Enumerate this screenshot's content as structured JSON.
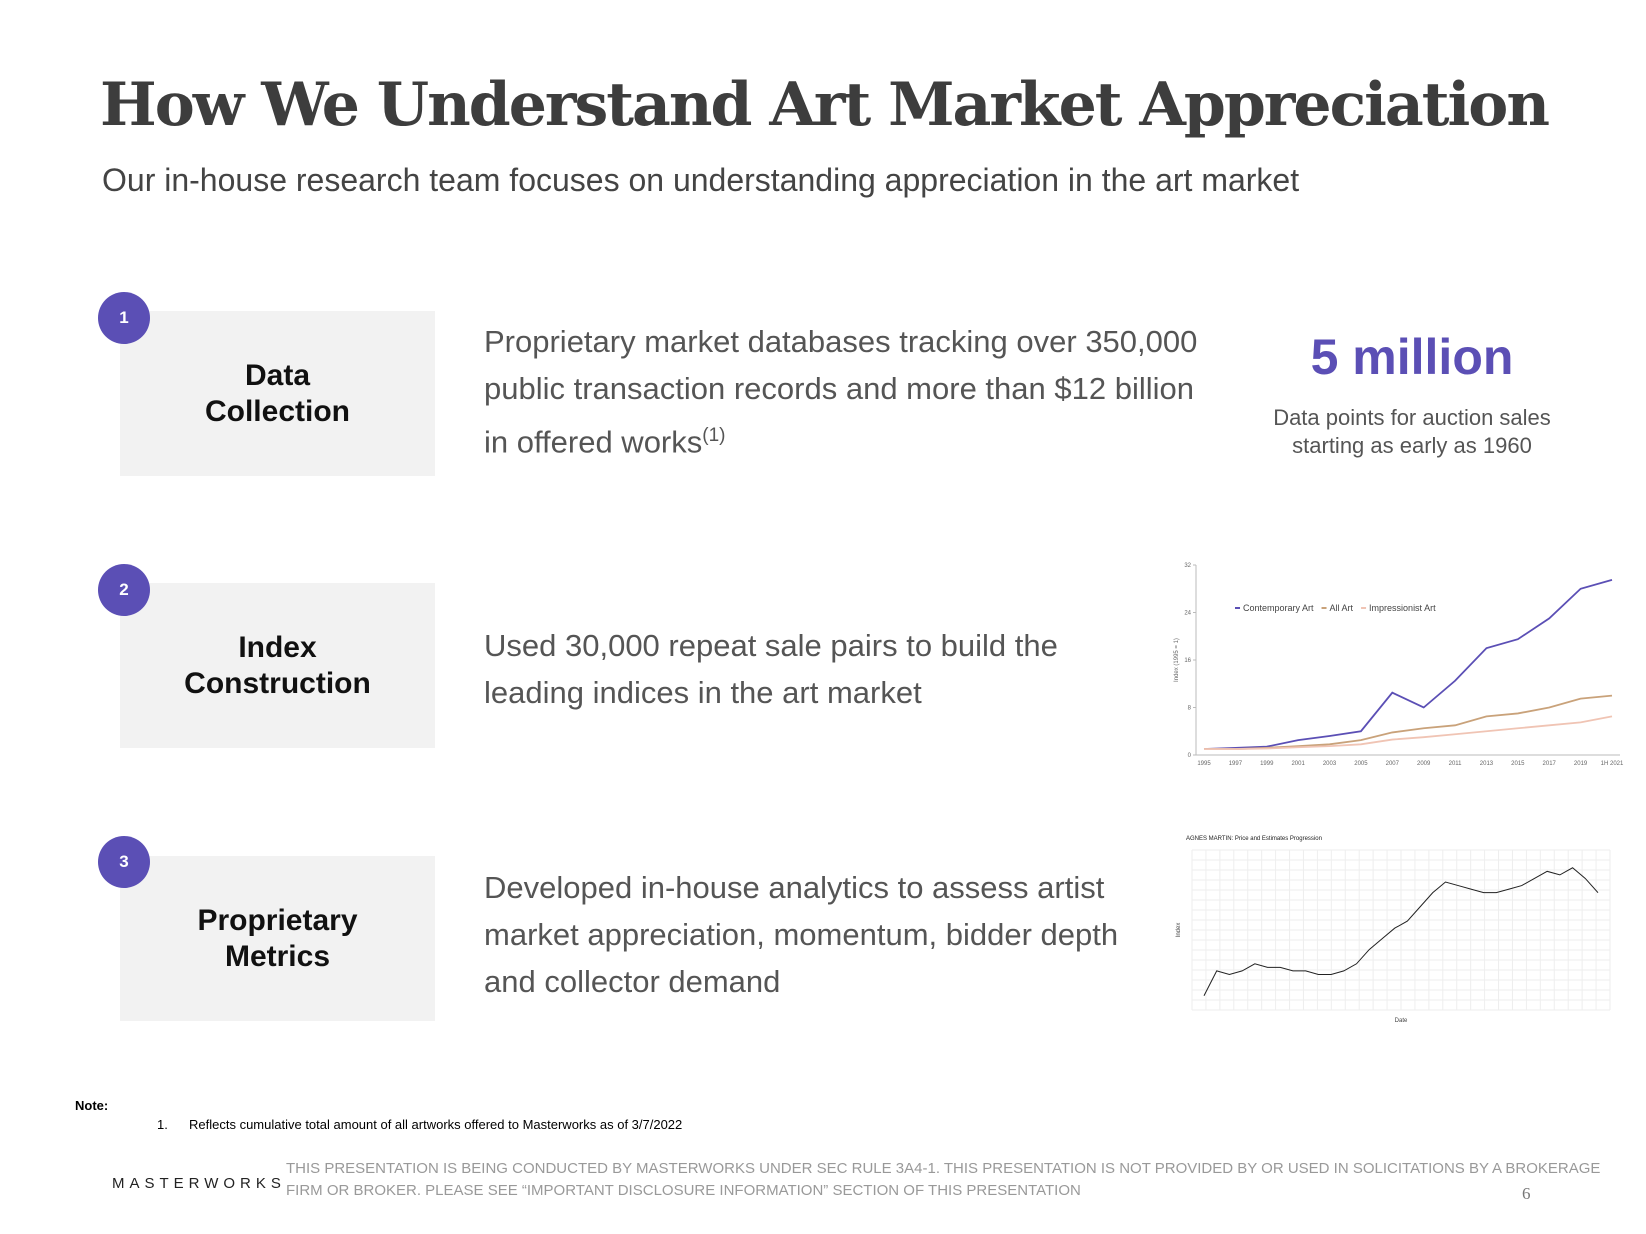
{
  "header": {
    "title": "How We Understand Art Market Appreciation",
    "subtitle": "Our in-house research team focuses on understanding appreciation in the art market"
  },
  "rows": [
    {
      "number": "1",
      "label": "Data Collection",
      "text": "Proprietary market databases tracking over 350,000 public transaction records and more than $12 billion in offered works",
      "sup": "(1)"
    },
    {
      "number": "2",
      "label": "Index Construction",
      "text": "Used 30,000 repeat sale pairs to build the leading indices in the art market"
    },
    {
      "number": "3",
      "label": "Proprietary Metrics",
      "text": "Developed in-house analytics to assess artist market appreciation, momentum, bidder depth and collector demand"
    }
  ],
  "stat": {
    "value": "5 million",
    "caption": "Data points for auction sales starting as early as 1960"
  },
  "chart_data": [
    {
      "type": "line",
      "y_label": "Index (1995 = 1)",
      "categories": [
        "1995",
        "1997",
        "1999",
        "2001",
        "2003",
        "2005",
        "2007",
        "2009",
        "2011",
        "2013",
        "2015",
        "2017",
        "2019",
        "1H 2021"
      ],
      "series": [
        {
          "name": "Contemporary Art",
          "color": "#5b4fb5",
          "values": [
            1,
            1.2,
            1.4,
            2.5,
            3.2,
            4,
            10.5,
            8,
            12.5,
            18,
            19.5,
            23,
            28,
            29.5
          ]
        },
        {
          "name": "All Art",
          "color": "#c9a27a",
          "values": [
            1,
            1,
            1.2,
            1.5,
            1.8,
            2.5,
            3.8,
            4.5,
            5,
            6.5,
            7,
            8,
            9.5,
            10
          ]
        },
        {
          "name": "Impressionist Art",
          "color": "#f0c4b4",
          "values": [
            1,
            1,
            1.1,
            1.3,
            1.5,
            1.8,
            2.6,
            3,
            3.5,
            4,
            4.5,
            5,
            5.5,
            6.5
          ]
        }
      ],
      "ylim": [
        0,
        32
      ],
      "yticks": [
        0,
        8,
        16,
        24,
        32
      ]
    },
    {
      "type": "line",
      "title": "AGNES MARTIN: Price and Estimates Progression",
      "y_label": "Index",
      "x_label": "Date",
      "color": "#222222",
      "values": [
        0.99,
        1.06,
        1.05,
        1.06,
        1.08,
        1.07,
        1.07,
        1.06,
        1.06,
        1.05,
        1.05,
        1.06,
        1.08,
        1.12,
        1.15,
        1.18,
        1.2,
        1.24,
        1.28,
        1.31,
        1.3,
        1.29,
        1.28,
        1.28,
        1.29,
        1.3,
        1.32,
        1.34,
        1.33,
        1.35,
        1.32,
        1.28
      ],
      "ylim": [
        0.95,
        1.4
      ]
    }
  ],
  "note": {
    "label": "Note:",
    "items": [
      {
        "num": "1.",
        "text": "Reflects cumulative total amount of all artworks offered to Masterworks as of 3/7/2022"
      }
    ]
  },
  "footer": {
    "logo": "MASTERWORKS",
    "disclaimer": "THIS PRESENTATION  IS BEING CONDUCTED BY MASTERWORKS UNDER SEC RULE 3A4-1. THIS PRESENTATION  IS NOT PROVIDED BY OR USED IN SOLICITATIONS BY A BROKERAGE FIRM OR BROKER. PLEASE SEE “IMPORTANT DISCLOSURE INFORMATION” SECTION OF THIS PRESENTATION",
    "page": "6"
  }
}
